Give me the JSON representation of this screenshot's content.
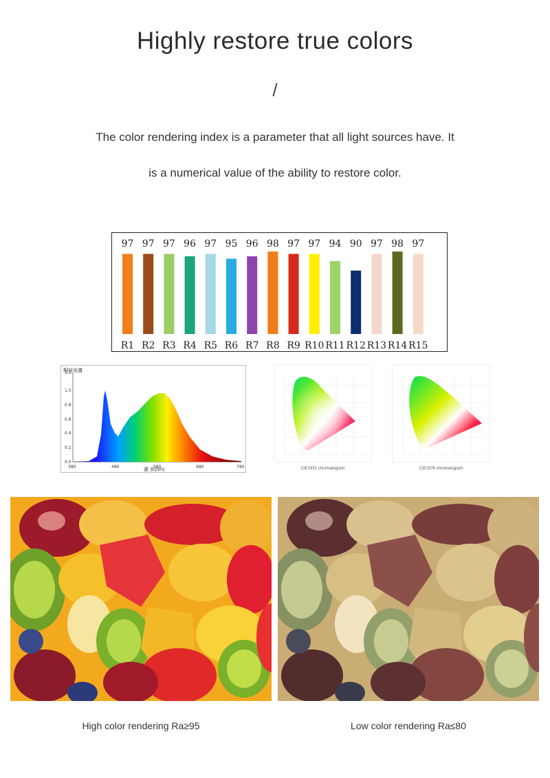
{
  "header": {
    "title": "Highly restore true colors",
    "divider": "/",
    "description_line1": "The color rendering index is a parameter that all light sources have. It",
    "description_line2": "is a numerical value of the ability to restore color."
  },
  "chart_data": [
    {
      "type": "bar",
      "categories": [
        "R1",
        "R2",
        "R3",
        "R4",
        "R5",
        "R6",
        "R7",
        "R8",
        "R9",
        "R10",
        "R11",
        "R12",
        "R13",
        "R14",
        "R15"
      ],
      "values": [
        97,
        97,
        97,
        96,
        97,
        95,
        96,
        98,
        97,
        97,
        94,
        90,
        97,
        98,
        97
      ],
      "colors": [
        "#f07f1e",
        "#9b4b1c",
        "#9ccc65",
        "#1aa57a",
        "#a6d8e7",
        "#29abe2",
        "#8e44ad",
        "#ef7d1a",
        "#d52a1e",
        "#ffee00",
        "#9ad36a",
        "#0c2e6b",
        "#f6d6cf",
        "#5a6b1e",
        "#f7d9c8"
      ],
      "ylim": [
        0,
        100
      ]
    }
  ],
  "spectrum": {
    "title": "相对光谱",
    "y_ticks": [
      "1.2",
      "1.0",
      "0.8",
      "0.6",
      "0.4",
      "0.2",
      "0.0"
    ],
    "x_ticks": [
      "380",
      "480",
      "580",
      "680",
      "780"
    ],
    "x_label": "波 长(nm)"
  },
  "cie": {
    "caption_a": "CIE1931 chromatogram",
    "caption_b": "CIE1976 chromatogram"
  },
  "comparison": {
    "high_caption": "High color rendering Ra≥95",
    "low_caption": "Low color rendering Ra≤80"
  }
}
